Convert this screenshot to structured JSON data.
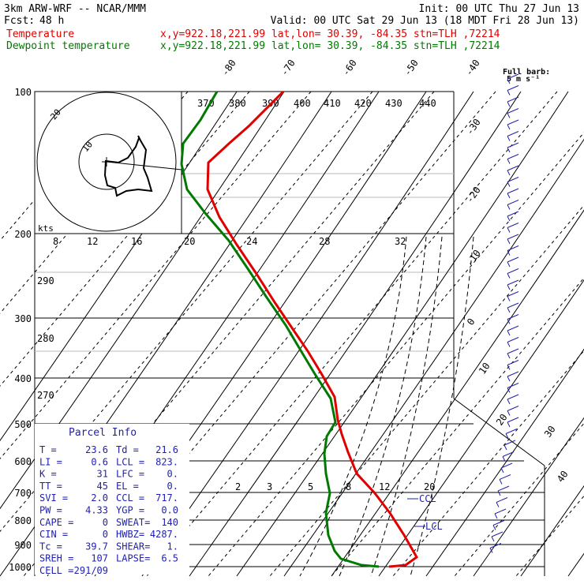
{
  "header": {
    "model": "3km ARW-WRF -- NCAR/MMM",
    "init": "Init: 00 UTC Thu 27 Jun 13",
    "fcst_label": "Fcst:",
    "fcst_value": "48 h",
    "valid": "Valid: 00 UTC Sat 29 Jun 13 (18 MDT Fri 28 Jun 13)"
  },
  "legend": [
    {
      "name": "Temperature",
      "info": "x,y=922.18,221.99   lat,lon= 30.39, -84.35   stn=TLH ,72214",
      "color": "#e00000"
    },
    {
      "name": "Dewpoint temperature",
      "info": "x,y=922.18,221.99   lat,lon= 30.39, -84.35   stn=TLH ,72214",
      "color": "#007a00"
    }
  ],
  "barb_title": "Full barb:",
  "barb_units": "5 m s⁻¹",
  "hodo_labels": {
    "kts": "kts",
    "r10": "10",
    "r20": "20"
  },
  "lcl_label": "LCL",
  "ccl_label": "CCL",
  "parcel_info": {
    "title": "Parcel Info",
    "rows": [
      [
        "T  =",
        "23.6",
        "Td =",
        "21.6"
      ],
      [
        "LI =",
        "0.6",
        "LCL =",
        "823."
      ],
      [
        "K  =",
        "31",
        "LFC =",
        "0."
      ],
      [
        "TT =",
        "45",
        "EL  =",
        "0."
      ],
      [
        "SVI =",
        "2.0",
        "CCL =",
        "717."
      ],
      [
        "PW =",
        "4.33",
        "YGP =",
        "0.0"
      ],
      [
        "CAPE =",
        "0",
        "SWEAT=",
        "140"
      ],
      [
        "CIN  =",
        "0",
        "HWBZ=",
        "4287."
      ],
      [
        "Tc  =",
        "39.7",
        "SHEAR=",
        "1."
      ],
      [
        "SREH =",
        "107",
        "LAPSE=",
        "6.5"
      ],
      [
        "CELL =",
        "291/09",
        "",
        ""
      ]
    ]
  },
  "chart_data": {
    "type": "line",
    "y_axis": "pressure (hPa)",
    "pressure_labels": [
      "100",
      "200",
      "300",
      "400",
      "500",
      "600",
      "700",
      "800",
      "900",
      "1000"
    ],
    "isotherm_labels": [
      "-80",
      "-70",
      "-60",
      "-50",
      "-40",
      "-30",
      "-20",
      "-10",
      "0",
      "10",
      "20",
      "30",
      "40"
    ],
    "theta_labels": [
      "370",
      "380",
      "390",
      "400",
      "410",
      "420",
      "430",
      "440"
    ],
    "theta_labels_left": [
      "290",
      "280",
      "270"
    ],
    "mixing_labels": [
      "2",
      "3",
      "5",
      "8",
      "12",
      "20"
    ],
    "thetae_labels": [
      "8",
      "12",
      "16",
      "20",
      "24",
      "28",
      "32"
    ],
    "series": [
      {
        "name": "Temperature",
        "color": "#e00000",
        "points": [
          [
            359,
            116
          ],
          [
            315,
            160
          ],
          [
            290,
            182
          ],
          [
            264,
            206
          ],
          [
            263,
            240
          ],
          [
            278,
            275
          ],
          [
            300,
            310
          ],
          [
            325,
            347
          ],
          [
            348,
            383
          ],
          [
            371,
            417
          ],
          [
            390,
            445
          ],
          [
            407,
            473
          ],
          [
            424,
            503
          ],
          [
            428,
            532
          ],
          [
            433,
            550
          ],
          [
            441,
            573
          ],
          [
            452,
            600
          ],
          [
            475,
            625
          ],
          [
            494,
            650
          ],
          [
            512,
            678
          ],
          [
            528,
            706
          ],
          [
            514,
            716
          ],
          [
            493,
            718
          ]
        ]
      },
      {
        "name": "Dewpoint temperature",
        "color": "#007a00",
        "points": [
          [
            275,
            116
          ],
          [
            254,
            152
          ],
          [
            232,
            182
          ],
          [
            230,
            208
          ],
          [
            237,
            240
          ],
          [
            260,
            270
          ],
          [
            290,
            305
          ],
          [
            315,
            342
          ],
          [
            338,
            377
          ],
          [
            362,
            412
          ],
          [
            381,
            444
          ],
          [
            399,
            474
          ],
          [
            419,
            505
          ],
          [
            425,
            535
          ],
          [
            414,
            553
          ],
          [
            411,
            575
          ],
          [
            413,
            600
          ],
          [
            418,
            625
          ],
          [
            413,
            650
          ],
          [
            416,
            678
          ],
          [
            424,
            698
          ],
          [
            432,
            708
          ],
          [
            458,
            716
          ],
          [
            480,
            718
          ]
        ]
      }
    ],
    "hodograph": {
      "points": [
        [
          175,
          172
        ],
        [
          178,
          178
        ],
        [
          185,
          190
        ],
        [
          182,
          213
        ],
        [
          187,
          225
        ],
        [
          192,
          242
        ],
        [
          175,
          240
        ],
        [
          160,
          242
        ],
        [
          148,
          248
        ],
        [
          146,
          238
        ],
        [
          136,
          235
        ],
        [
          133,
          222
        ],
        [
          134,
          204
        ],
        [
          150,
          206
        ],
        [
          162,
          200
        ],
        [
          172,
          186
        ],
        [
          176,
          175
        ]
      ]
    },
    "grid": true
  }
}
